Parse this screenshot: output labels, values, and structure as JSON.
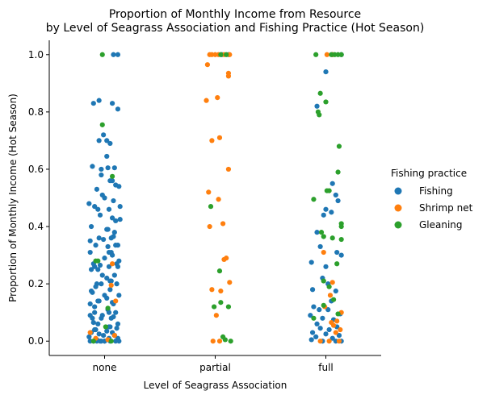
{
  "chart_data": {
    "type": "scatter",
    "title_line1": "Proportion of Monthly Income from Resource",
    "title_line2": "by Level of Seagrass Association and Fishing Practice (Hot Season)",
    "xlabel": "Level of Seagrass Association",
    "ylabel": "Proportion of Monthly Income (Hot Season)",
    "categories": [
      "none",
      "partial",
      "full"
    ],
    "ylim": [
      -0.05,
      1.05
    ],
    "yticks": [
      "0.0",
      "0.2",
      "0.4",
      "0.6",
      "0.8",
      "1.0"
    ],
    "grid": false,
    "legend": {
      "title": "Fishing practice",
      "placement": "right"
    },
    "series": [
      {
        "name": "Fishing",
        "color": "#1f77b4",
        "points": [
          [
            0.08,
            1.0
          ],
          [
            0.12,
            1.0
          ],
          [
            -0.05,
            0.7
          ],
          [
            0.05,
            0.69
          ],
          [
            0.02,
            0.645
          ],
          [
            -0.03,
            0.6
          ],
          [
            0.07,
            0.56
          ],
          [
            -0.02,
            0.51
          ],
          [
            -0.14,
            0.48
          ],
          [
            0.14,
            0.47
          ],
          [
            -0.06,
            0.46
          ],
          [
            0.1,
            0.42
          ],
          [
            0.03,
            0.39
          ],
          [
            0.08,
            0.365
          ],
          [
            -0.13,
            0.35
          ],
          [
            0.04,
            0.31
          ],
          [
            0.06,
            0.31
          ],
          [
            -0.09,
            0.26
          ],
          [
            0.11,
            0.27
          ],
          [
            -0.04,
            0.265
          ],
          [
            0.12,
            0.26
          ],
          [
            -0.12,
            0.25
          ],
          [
            -0.02,
            0.23
          ],
          [
            0.05,
            0.21
          ],
          [
            -0.07,
            0.2
          ],
          [
            -0.11,
            0.17
          ],
          [
            0.02,
            0.15
          ],
          [
            -0.06,
            0.14
          ],
          [
            0.07,
            0.135
          ],
          [
            -0.09,
            0.12
          ],
          [
            0.04,
            0.1
          ],
          [
            -0.13,
            0.09
          ],
          [
            0.08,
            0.085
          ],
          [
            -0.03,
            0.08
          ],
          [
            -0.1,
            0.065
          ],
          [
            0.05,
            0.05
          ],
          [
            0.11,
            0.045
          ],
          [
            -0.08,
            0.04
          ],
          [
            0.02,
            0.035
          ],
          [
            -0.12,
            0.03
          ],
          [
            0.07,
            0.03
          ],
          [
            -0.05,
            0.025
          ],
          [
            0.09,
            0.02
          ],
          [
            -0.01,
            0.02
          ],
          [
            -0.14,
            0.015
          ],
          [
            0.04,
            0.01
          ],
          [
            0.12,
            0.01
          ],
          [
            -0.07,
            0.005
          ],
          [
            0.0,
            0.0
          ],
          [
            -0.1,
            0.0
          ],
          [
            0.1,
            0.0
          ],
          [
            0.13,
            0.0
          ],
          [
            -0.03,
            0.0
          ],
          [
            1.06,
            1.0
          ],
          [
            1.12,
            1.0
          ],
          [
            -0.1,
            0.83
          ],
          [
            0.12,
            0.81
          ],
          [
            -0.05,
            0.84
          ],
          [
            0.07,
            0.83
          ],
          [
            -0.01,
            0.72
          ],
          [
            0.02,
            0.7
          ],
          [
            -0.11,
            0.61
          ],
          [
            0.03,
            0.605
          ],
          [
            0.09,
            0.605
          ],
          [
            -0.03,
            0.58
          ],
          [
            0.05,
            0.56
          ],
          [
            0.1,
            0.545
          ],
          [
            -0.07,
            0.53
          ],
          [
            0.13,
            0.54
          ],
          [
            0.0,
            0.5
          ],
          [
            0.08,
            0.49
          ],
          [
            -0.09,
            0.47
          ],
          [
            0.04,
            0.46
          ],
          [
            -0.04,
            0.44
          ],
          [
            0.07,
            0.43
          ],
          [
            0.14,
            0.425
          ],
          [
            -0.12,
            0.4
          ],
          [
            0.02,
            0.39
          ],
          [
            0.09,
            0.38
          ],
          [
            -0.05,
            0.36
          ],
          [
            0.06,
            0.36
          ],
          [
            -0.01,
            0.355
          ],
          [
            0.12,
            0.335
          ],
          [
            -0.08,
            0.335
          ],
          [
            0.1,
            0.335
          ],
          [
            0.03,
            0.33
          ],
          [
            -0.13,
            0.31
          ],
          [
            0.07,
            0.3
          ],
          [
            0.0,
            0.29
          ],
          [
            0.13,
            0.28
          ],
          [
            -0.1,
            0.27
          ],
          [
            0.04,
            0.26
          ],
          [
            -0.06,
            0.25
          ],
          [
            0.09,
            0.23
          ],
          [
            0.02,
            0.22
          ],
          [
            0.06,
            0.21
          ],
          [
            -0.03,
            0.2
          ],
          [
            0.11,
            0.2
          ],
          [
            -0.08,
            0.19
          ],
          [
            0.05,
            0.18
          ],
          [
            -0.12,
            0.175
          ],
          [
            0.0,
            0.16
          ],
          [
            0.13,
            0.16
          ],
          [
            -0.05,
            0.14
          ],
          [
            0.08,
            0.13
          ],
          [
            -0.13,
            0.13
          ],
          [
            0.03,
            0.11
          ],
          [
            -0.09,
            0.1
          ],
          [
            0.1,
            0.1
          ],
          [
            -0.02,
            0.09
          ],
          [
            0.06,
            0.08
          ],
          [
            -0.11,
            0.08
          ],
          [
            0.12,
            0.06
          ],
          [
            -0.06,
            0.06
          ],
          [
            0.04,
            0.05
          ],
          [
            -0.09,
            0.04
          ],
          [
            0.09,
            0.02
          ],
          [
            -0.13,
            0.0
          ],
          [
            -0.07,
            0.0
          ],
          [
            0.0,
            0.0
          ],
          [
            0.05,
            0.0
          ],
          [
            -0.04,
            0.0
          ],
          [
            2.06,
            1.0
          ],
          [
            2.14,
            1.0
          ],
          [
            2.0,
            0.94
          ],
          [
            1.92,
            0.82
          ],
          [
            2.06,
            0.55
          ],
          [
            2.09,
            0.51
          ],
          [
            2.11,
            0.49
          ],
          [
            2.0,
            0.46
          ],
          [
            1.98,
            0.44
          ],
          [
            2.05,
            0.45
          ],
          [
            1.92,
            0.38
          ],
          [
            1.95,
            0.33
          ],
          [
            2.14,
            0.3
          ],
          [
            2.1,
            0.31
          ],
          [
            1.87,
            0.275
          ],
          [
            2.0,
            0.26
          ],
          [
            1.97,
            0.22
          ],
          [
            2.02,
            0.2
          ],
          [
            1.88,
            0.18
          ],
          [
            2.09,
            0.175
          ],
          [
            2.05,
            0.14
          ],
          [
            1.89,
            0.12
          ],
          [
            1.94,
            0.11
          ],
          [
            2.02,
            0.11
          ],
          [
            2.13,
            0.095
          ],
          [
            1.86,
            0.09
          ],
          [
            1.97,
            0.08
          ],
          [
            2.07,
            0.075
          ],
          [
            1.92,
            0.06
          ],
          [
            2.1,
            0.05
          ],
          [
            1.95,
            0.045
          ],
          [
            2.03,
            0.04
          ],
          [
            1.88,
            0.03
          ],
          [
            2.0,
            0.025
          ],
          [
            2.12,
            0.02
          ],
          [
            1.91,
            0.015
          ],
          [
            2.06,
            0.01
          ],
          [
            1.87,
            0.005
          ],
          [
            1.97,
            0.0
          ],
          [
            2.09,
            0.0
          ],
          [
            2.14,
            0.0
          ]
        ]
      },
      {
        "name": "Shrimp net",
        "color": "#ff7f0e",
        "points": [
          [
            0.07,
            0.27
          ],
          [
            0.06,
            0.195
          ],
          [
            0.1,
            0.14
          ],
          [
            -0.13,
            0.03
          ],
          [
            0.09,
            0.02
          ],
          [
            -0.08,
            0.01
          ],
          [
            0.03,
            0.005
          ],
          [
            0.93,
            0.965
          ],
          [
            0.95,
            1.0
          ],
          [
            0.97,
            1.0
          ],
          [
            1.0,
            1.0
          ],
          [
            1.03,
            1.0
          ],
          [
            1.08,
            1.0
          ],
          [
            1.13,
            1.0
          ],
          [
            1.12,
            0.935
          ],
          [
            1.12,
            0.925
          ],
          [
            1.02,
            0.85
          ],
          [
            0.92,
            0.84
          ],
          [
            1.04,
            0.71
          ],
          [
            0.97,
            0.7
          ],
          [
            1.12,
            0.6
          ],
          [
            0.94,
            0.52
          ],
          [
            1.03,
            0.495
          ],
          [
            1.07,
            0.41
          ],
          [
            0.95,
            0.4
          ],
          [
            1.1,
            0.29
          ],
          [
            1.08,
            0.285
          ],
          [
            1.13,
            0.205
          ],
          [
            0.97,
            0.18
          ],
          [
            1.05,
            0.175
          ],
          [
            1.01,
            0.09
          ],
          [
            0.98,
            0.0
          ],
          [
            1.04,
            0.0
          ],
          [
            2.01,
            1.0
          ],
          [
            2.06,
            1.0
          ],
          [
            1.98,
            0.31
          ],
          [
            2.06,
            0.205
          ],
          [
            2.04,
            0.16
          ],
          [
            1.99,
            0.12
          ],
          [
            2.14,
            0.1
          ],
          [
            2.1,
            0.07
          ],
          [
            2.05,
            0.065
          ],
          [
            2.07,
            0.055
          ],
          [
            2.13,
            0.04
          ],
          [
            2.09,
            0.03
          ],
          [
            1.95,
            0.0
          ],
          [
            2.03,
            0.0
          ],
          [
            2.12,
            0.0
          ]
        ]
      },
      {
        "name": "Gleaning",
        "color": "#2ca02c",
        "points": [
          [
            -0.02,
            1.0
          ],
          [
            -0.02,
            0.755
          ],
          [
            0.07,
            0.575
          ],
          [
            -0.08,
            0.28
          ],
          [
            -0.06,
            0.28
          ],
          [
            0.03,
            0.115
          ],
          [
            0.01,
            0.05
          ],
          [
            -0.1,
            0.0
          ],
          [
            0.06,
            0.0
          ],
          [
            1.05,
            1.0
          ],
          [
            1.1,
            1.0
          ],
          [
            0.96,
            0.47
          ],
          [
            1.04,
            0.245
          ],
          [
            1.05,
            0.135
          ],
          [
            0.99,
            0.12
          ],
          [
            1.12,
            0.12
          ],
          [
            1.07,
            0.015
          ],
          [
            1.09,
            0.005
          ],
          [
            1.14,
            0.0
          ],
          [
            1.91,
            1.0
          ],
          [
            2.05,
            1.0
          ],
          [
            2.08,
            1.0
          ],
          [
            2.11,
            1.0
          ],
          [
            2.14,
            1.0
          ],
          [
            1.95,
            0.865
          ],
          [
            2.0,
            0.835
          ],
          [
            1.93,
            0.8
          ],
          [
            1.94,
            0.79
          ],
          [
            2.12,
            0.68
          ],
          [
            2.11,
            0.59
          ],
          [
            2.01,
            0.525
          ],
          [
            2.03,
            0.525
          ],
          [
            1.89,
            0.495
          ],
          [
            2.14,
            0.41
          ],
          [
            2.14,
            0.4
          ],
          [
            1.96,
            0.38
          ],
          [
            1.98,
            0.365
          ],
          [
            2.06,
            0.36
          ],
          [
            2.14,
            0.355
          ],
          [
            2.1,
            0.27
          ],
          [
            1.98,
            0.21
          ],
          [
            2.03,
            0.19
          ],
          [
            2.07,
            0.145
          ],
          [
            1.98,
            0.125
          ],
          [
            2.11,
            0.095
          ],
          [
            1.89,
            0.08
          ]
        ]
      }
    ]
  }
}
